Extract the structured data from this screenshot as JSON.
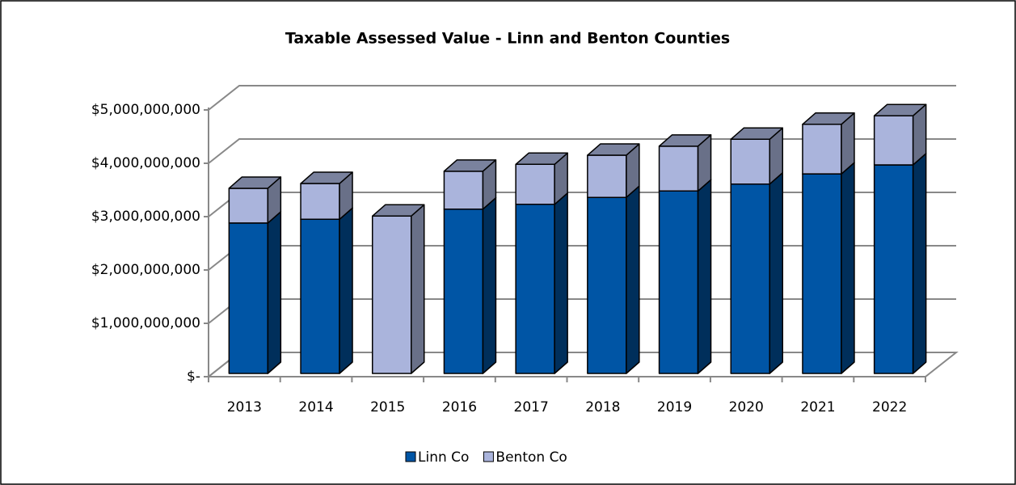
{
  "chart_data": {
    "type": "bar3d_stacked",
    "title": "Taxable Assessed Value - Linn and Benton Counties",
    "categories": [
      "2013",
      "2014",
      "2015",
      "2016",
      "2017",
      "2018",
      "2019",
      "2020",
      "2021",
      "2022"
    ],
    "series": [
      {
        "name": "Linn Co",
        "color": "#0055a5",
        "values": [
          2820000000,
          2890000000,
          null,
          3080000000,
          3170000000,
          3300000000,
          3420000000,
          3550000000,
          3740000000,
          3910000000
        ]
      },
      {
        "name": "Benton Co",
        "color": "#aab4dc",
        "values": [
          650000000,
          670000000,
          2950000000,
          710000000,
          750000000,
          790000000,
          840000000,
          840000000,
          930000000,
          920000000
        ]
      }
    ],
    "ylim": [
      0,
      5000000000
    ],
    "yticks": [
      {
        "value": 0,
        "label": "$-"
      },
      {
        "value": 1000000000,
        "label": "$1,000,000,000"
      },
      {
        "value": 2000000000,
        "label": "$2,000,000,000"
      },
      {
        "value": 3000000000,
        "label": "$3,000,000,000"
      },
      {
        "value": 4000000000,
        "label": "$4,000,000,000"
      },
      {
        "value": 5000000000,
        "label": "$5,000,000,000"
      }
    ],
    "grid": true,
    "legend": "bottom"
  }
}
